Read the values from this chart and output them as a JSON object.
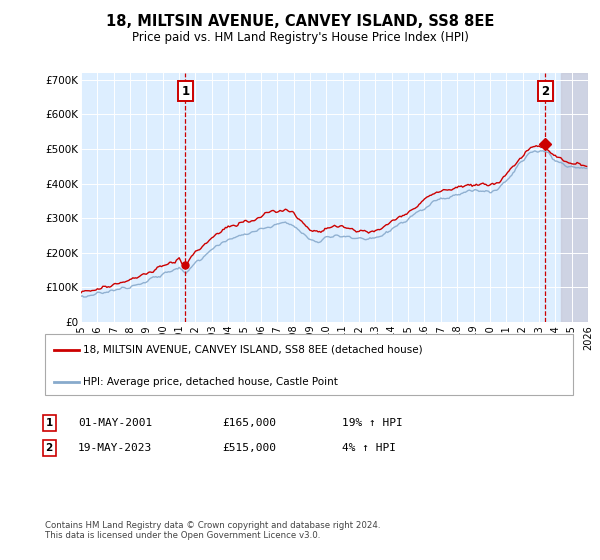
{
  "title": "18, MILTSIN AVENUE, CANVEY ISLAND, SS8 8EE",
  "subtitle": "Price paid vs. HM Land Registry's House Price Index (HPI)",
  "xlim_start": 1995,
  "xlim_end": 2026,
  "ylim": [
    0,
    720000
  ],
  "yticks": [
    0,
    100000,
    200000,
    300000,
    400000,
    500000,
    600000,
    700000
  ],
  "ytick_labels": [
    "£0",
    "£100K",
    "£200K",
    "£300K",
    "£400K",
    "£500K",
    "£600K",
    "£700K"
  ],
  "xticks": [
    1995,
    1996,
    1997,
    1998,
    1999,
    2000,
    2001,
    2002,
    2003,
    2004,
    2005,
    2006,
    2007,
    2008,
    2009,
    2010,
    2011,
    2012,
    2013,
    2014,
    2015,
    2016,
    2017,
    2018,
    2019,
    2020,
    2021,
    2022,
    2023,
    2024,
    2025,
    2026
  ],
  "sale1_x": 2001.38,
  "sale1_y": 165000,
  "sale2_x": 2023.38,
  "sale2_y": 515000,
  "legend_line1": "18, MILTSIN AVENUE, CANVEY ISLAND, SS8 8EE (detached house)",
  "legend_line2": "HPI: Average price, detached house, Castle Point",
  "note1_label": "1",
  "note1_date": "01-MAY-2001",
  "note1_price": "£165,000",
  "note1_hpi": "19% ↑ HPI",
  "note2_label": "2",
  "note2_date": "19-MAY-2023",
  "note2_price": "£515,000",
  "note2_hpi": "4% ↑ HPI",
  "footer": "Contains HM Land Registry data © Crown copyright and database right 2024.\nThis data is licensed under the Open Government Licence v3.0.",
  "line_color_red": "#cc0000",
  "line_color_blue": "#88aacc",
  "bg_color": "#ddeeff",
  "grid_color": "#ffffff",
  "future_shade_color": "#c8c8d8"
}
